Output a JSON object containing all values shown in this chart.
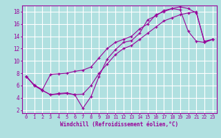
{
  "title": "",
  "xlabel": "Windchill (Refroidissement éolien,°C)",
  "ylabel": "",
  "bg_color": "#b0e0e0",
  "grid_color": "#ffffff",
  "line_color": "#990099",
  "xlim": [
    -0.5,
    23.5
  ],
  "ylim": [
    1.5,
    19.0
  ],
  "xticks": [
    0,
    1,
    2,
    3,
    4,
    5,
    6,
    7,
    8,
    9,
    10,
    11,
    12,
    13,
    14,
    15,
    16,
    17,
    18,
    19,
    20,
    21,
    22,
    23
  ],
  "yticks": [
    2,
    4,
    6,
    8,
    10,
    12,
    14,
    16,
    18
  ],
  "line1_x": [
    0,
    1,
    2,
    3,
    4,
    5,
    6,
    7,
    8,
    9,
    10,
    11,
    12,
    13,
    14,
    15,
    16,
    17,
    18,
    19,
    20,
    21,
    22,
    23
  ],
  "line1_y": [
    7.5,
    6.0,
    5.2,
    4.5,
    4.7,
    4.8,
    4.5,
    2.3,
    4.2,
    7.5,
    10.3,
    11.8,
    13.0,
    13.3,
    14.5,
    16.7,
    17.3,
    18.2,
    18.5,
    18.3,
    14.8,
    13.2,
    13.0,
    13.5
  ],
  "line2_x": [
    0,
    1,
    2,
    3,
    4,
    5,
    6,
    7,
    8,
    9,
    10,
    11,
    12,
    13,
    14,
    15,
    16,
    17,
    18,
    19,
    20,
    21,
    22,
    23
  ],
  "line2_y": [
    7.5,
    6.1,
    5.3,
    7.8,
    7.9,
    8.0,
    8.3,
    8.5,
    9.0,
    10.5,
    12.0,
    13.0,
    13.5,
    14.0,
    15.2,
    16.0,
    17.5,
    18.0,
    18.5,
    18.8,
    18.5,
    17.8,
    13.2,
    13.5
  ],
  "line3_x": [
    0,
    1,
    2,
    3,
    4,
    5,
    6,
    7,
    8,
    9,
    10,
    11,
    12,
    13,
    14,
    15,
    16,
    17,
    18,
    19,
    20,
    21,
    22,
    23
  ],
  "line3_y": [
    7.5,
    6.0,
    5.2,
    4.5,
    4.6,
    4.7,
    4.5,
    4.6,
    6.0,
    8.0,
    9.5,
    11.0,
    12.0,
    12.5,
    13.5,
    14.5,
    15.5,
    16.5,
    17.0,
    17.5,
    17.8,
    18.0,
    13.0,
    13.5
  ],
  "figsize": [
    3.2,
    2.0
  ],
  "dpi": 100
}
